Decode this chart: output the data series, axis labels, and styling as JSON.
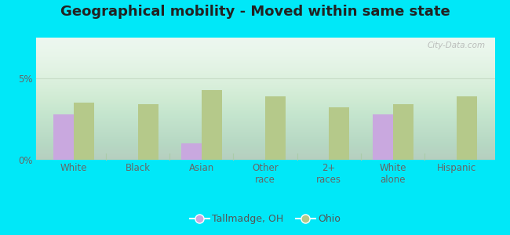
{
  "title": "Geographical mobility - Moved within same state",
  "categories": [
    "White",
    "Black",
    "Asian",
    "Other\nrace",
    "2+\nraces",
    "White\nalone",
    "Hispanic"
  ],
  "tallmadge_values": [
    2.8,
    0.0,
    1.0,
    0.0,
    0.0,
    2.8,
    0.0
  ],
  "ohio_values": [
    3.5,
    3.4,
    4.3,
    3.9,
    3.2,
    3.4,
    3.9
  ],
  "tallmadge_color": "#c9a8df",
  "ohio_color": "#b5c98a",
  "ylim": [
    0,
    7.5
  ],
  "yticks": [
    0,
    5
  ],
  "ytick_labels": [
    "0%",
    "5%"
  ],
  "bar_width": 0.32,
  "outer_bg": "#00e8f8",
  "plot_bg_top": "#eaf6ee",
  "plot_bg_bottom": "#d0ead8",
  "grid_color": "#c8ddc8",
  "title_fontsize": 13,
  "legend_tallmadge": "Tallmadge, OH",
  "legend_ohio": "Ohio",
  "watermark": "City-Data.com",
  "axis_color": "#aaccaa",
  "tick_color": "#666666"
}
